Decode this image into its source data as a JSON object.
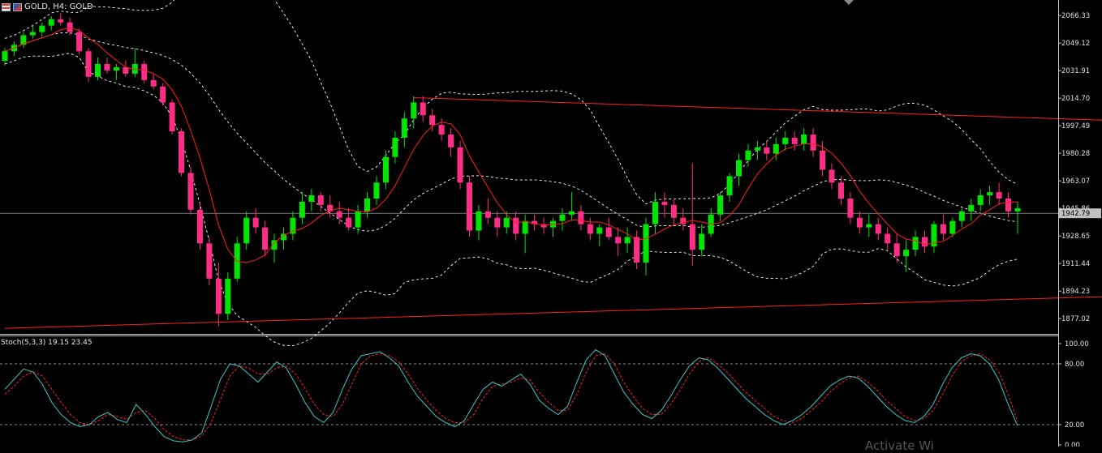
{
  "header": {
    "symbol_line": "GOLD, H4: GOLD"
  },
  "stochastic": {
    "label": "Stoch(5,3,3) 19.15 23.45",
    "main": 19.15,
    "signal": 23.45
  },
  "watermark": {
    "text": "Activate Wi"
  },
  "current_price": "1942.79",
  "colors": {
    "background": "#000000",
    "bull": "#00e600",
    "bear": "#ff2d86",
    "ma": "#ff1e1e",
    "bands": "#ffffff",
    "trendlines": "#ff2020",
    "stoch_main": "#3cc8c8",
    "stoch_signal": "#ff2020"
  },
  "icons": {
    "calendar": "calendar-icon",
    "flag": "flag-icon"
  },
  "chart_data": [
    {
      "type": "candlestick",
      "title": "GOLD, H4: GOLD",
      "y_ticks": [
        "2066.33",
        "2049.12",
        "2031.91",
        "2014.70",
        "1997.49",
        "1980.28",
        "1963.07",
        "1945.86",
        "1928.65",
        "1911.44",
        "1894.23",
        "1877.02"
      ],
      "ylim": [
        1868,
        2076
      ],
      "current_price": 1942.79,
      "indicators": [
        "Bollinger Bands (dashed)",
        "Moving average (red)",
        "Converging trendlines"
      ],
      "trendlines": [
        {
          "from_index": 44,
          "from_price": 2015.0,
          "to_index": 327,
          "to_price": 1961.5
        },
        {
          "from_index": 0,
          "from_price": 1871.0,
          "to_index": 327,
          "to_price": 1925.5
        }
      ],
      "ohlc": [
        [
          2038,
          2046,
          2035,
          2044
        ],
        [
          2044,
          2050,
          2041,
          2048
        ],
        [
          2048,
          2056,
          2046,
          2054
        ],
        [
          2054,
          2060,
          2052,
          2056
        ],
        [
          2056,
          2062,
          2053,
          2060
        ],
        [
          2060,
          2066,
          2057,
          2064
        ],
        [
          2064,
          2068,
          2060,
          2062
        ],
        [
          2062,
          2065,
          2054,
          2056
        ],
        [
          2056,
          2058,
          2042,
          2044
        ],
        [
          2044,
          2046,
          2025,
          2028
        ],
        [
          2028,
          2040,
          2026,
          2036
        ],
        [
          2036,
          2040,
          2030,
          2032
        ],
        [
          2032,
          2036,
          2026,
          2034
        ],
        [
          2034,
          2038,
          2028,
          2030
        ],
        [
          2030,
          2046,
          2028,
          2036
        ],
        [
          2036,
          2038,
          2024,
          2026
        ],
        [
          2026,
          2030,
          2020,
          2022
        ],
        [
          2022,
          2024,
          2010,
          2012
        ],
        [
          2012,
          2014,
          1992,
          1994
        ],
        [
          1994,
          1996,
          1966,
          1968
        ],
        [
          1968,
          1972,
          1942,
          1945
        ],
        [
          1945,
          1950,
          1920,
          1924
        ],
        [
          1924,
          1928,
          1898,
          1902
        ],
        [
          1902,
          1912,
          1872,
          1880
        ],
        [
          1880,
          1906,
          1876,
          1902
        ],
        [
          1902,
          1928,
          1900,
          1924
        ],
        [
          1924,
          1944,
          1920,
          1940
        ],
        [
          1940,
          1946,
          1930,
          1934
        ],
        [
          1934,
          1938,
          1916,
          1920
        ],
        [
          1920,
          1930,
          1912,
          1926
        ],
        [
          1926,
          1934,
          1920,
          1930
        ],
        [
          1930,
          1944,
          1926,
          1940
        ],
        [
          1940,
          1956,
          1936,
          1950
        ],
        [
          1950,
          1958,
          1944,
          1954
        ],
        [
          1954,
          1956,
          1944,
          1948
        ],
        [
          1948,
          1954,
          1940,
          1944
        ],
        [
          1944,
          1950,
          1936,
          1940
        ],
        [
          1940,
          1946,
          1932,
          1934
        ],
        [
          1934,
          1948,
          1930,
          1944
        ],
        [
          1944,
          1956,
          1940,
          1952
        ],
        [
          1952,
          1966,
          1948,
          1962
        ],
        [
          1962,
          1982,
          1958,
          1978
        ],
        [
          1978,
          1994,
          1974,
          1990
        ],
        [
          1990,
          2006,
          1984,
          2002
        ],
        [
          2002,
          2016,
          1996,
          2012
        ],
        [
          2012,
          2016,
          2000,
          2004
        ],
        [
          2004,
          2008,
          1994,
          1998
        ],
        [
          1998,
          2002,
          1988,
          1992
        ],
        [
          1992,
          1996,
          1978,
          1984
        ],
        [
          1984,
          1988,
          1958,
          1962
        ],
        [
          1962,
          1966,
          1928,
          1932
        ],
        [
          1932,
          1948,
          1926,
          1944
        ],
        [
          1944,
          1952,
          1936,
          1940
        ],
        [
          1940,
          1944,
          1928,
          1934
        ],
        [
          1934,
          1944,
          1930,
          1940
        ],
        [
          1940,
          1944,
          1926,
          1930
        ],
        [
          1930,
          1942,
          1918,
          1938
        ],
        [
          1938,
          1942,
          1932,
          1936
        ],
        [
          1936,
          1940,
          1930,
          1934
        ],
        [
          1934,
          1940,
          1928,
          1938
        ],
        [
          1938,
          1946,
          1932,
          1942
        ],
        [
          1942,
          1956,
          1938,
          1944
        ],
        [
          1944,
          1948,
          1932,
          1936
        ],
        [
          1936,
          1940,
          1926,
          1930
        ],
        [
          1930,
          1936,
          1922,
          1934
        ],
        [
          1934,
          1940,
          1926,
          1928
        ],
        [
          1928,
          1934,
          1916,
          1924
        ],
        [
          1924,
          1934,
          1918,
          1928
        ],
        [
          1928,
          1932,
          1908,
          1912
        ],
        [
          1912,
          1940,
          1904,
          1936
        ],
        [
          1936,
          1956,
          1930,
          1950
        ],
        [
          1950,
          1956,
          1940,
          1948
        ],
        [
          1948,
          1952,
          1936,
          1940
        ],
        [
          1940,
          1946,
          1932,
          1936
        ],
        [
          1936,
          1974,
          1910,
          1920
        ],
        [
          1920,
          1936,
          1916,
          1930
        ],
        [
          1930,
          1946,
          1928,
          1942
        ],
        [
          1942,
          1956,
          1938,
          1954
        ],
        [
          1954,
          1968,
          1950,
          1966
        ],
        [
          1966,
          1980,
          1960,
          1976
        ],
        [
          1976,
          1986,
          1972,
          1982
        ],
        [
          1982,
          1988,
          1976,
          1984
        ],
        [
          1984,
          1988,
          1976,
          1980
        ],
        [
          1980,
          1990,
          1976,
          1986
        ],
        [
          1986,
          1994,
          1982,
          1990
        ],
        [
          1990,
          1994,
          1982,
          1986
        ],
        [
          1986,
          1996,
          1982,
          1992
        ],
        [
          1992,
          1996,
          1978,
          1982
        ],
        [
          1982,
          1988,
          1966,
          1970
        ],
        [
          1970,
          1974,
          1958,
          1962
        ],
        [
          1962,
          1966,
          1948,
          1952
        ],
        [
          1952,
          1956,
          1936,
          1940
        ],
        [
          1940,
          1944,
          1930,
          1934
        ],
        [
          1934,
          1942,
          1928,
          1936
        ],
        [
          1936,
          1940,
          1926,
          1930
        ],
        [
          1930,
          1934,
          1920,
          1924
        ],
        [
          1924,
          1930,
          1912,
          1916
        ],
        [
          1916,
          1926,
          1906,
          1920
        ],
        [
          1920,
          1932,
          1916,
          1928
        ],
        [
          1928,
          1932,
          1918,
          1922
        ],
        [
          1922,
          1938,
          1918,
          1936
        ],
        [
          1936,
          1942,
          1926,
          1930
        ],
        [
          1930,
          1940,
          1928,
          1938
        ],
        [
          1938,
          1946,
          1934,
          1944
        ],
        [
          1944,
          1952,
          1938,
          1948
        ],
        [
          1948,
          1958,
          1944,
          1954
        ],
        [
          1954,
          1960,
          1948,
          1956
        ],
        [
          1956,
          1962,
          1948,
          1952
        ],
        [
          1952,
          1956,
          1940,
          1944
        ],
        [
          1944,
          1950,
          1930,
          1946
        ]
      ]
    },
    {
      "type": "line",
      "title": "Stoch(5,3,3) 19.15 23.45",
      "y_ticks": [
        "100.00",
        "80.00",
        "20.00",
        "0.00"
      ],
      "ylim": [
        0,
        100
      ],
      "levels": [
        80,
        20
      ],
      "series": [
        {
          "name": "main",
          "values": [
            55,
            65,
            75,
            72,
            60,
            42,
            30,
            22,
            18,
            20,
            28,
            32,
            25,
            22,
            40,
            30,
            18,
            8,
            4,
            3,
            5,
            12,
            38,
            65,
            80,
            78,
            70,
            62,
            72,
            82,
            76,
            60,
            42,
            28,
            22,
            32,
            55,
            75,
            88,
            90,
            92,
            86,
            78,
            62,
            48,
            38,
            28,
            22,
            18,
            24,
            40,
            55,
            62,
            58,
            64,
            70,
            60,
            44,
            36,
            30,
            38,
            62,
            84,
            94,
            88,
            70,
            52,
            40,
            30,
            26,
            34,
            48,
            64,
            78,
            86,
            84,
            76,
            66,
            56,
            46,
            38,
            30,
            24,
            20,
            24,
            30,
            38,
            48,
            58,
            64,
            68,
            66,
            58,
            48,
            38,
            30,
            24,
            22,
            28,
            40,
            60,
            76,
            86,
            90,
            88,
            80,
            64,
            40,
            19
          ]
        },
        {
          "name": "signal",
          "values": [
            50,
            58,
            68,
            72,
            68,
            55,
            42,
            30,
            22,
            20,
            24,
            30,
            28,
            25,
            32,
            34,
            26,
            15,
            8,
            5,
            5,
            9,
            22,
            45,
            68,
            78,
            76,
            70,
            70,
            76,
            78,
            70,
            56,
            40,
            30,
            28,
            40,
            60,
            80,
            88,
            90,
            88,
            82,
            70,
            56,
            44,
            34,
            26,
            22,
            22,
            30,
            46,
            58,
            60,
            62,
            66,
            64,
            52,
            42,
            34,
            34,
            50,
            72,
            88,
            90,
            80,
            62,
            48,
            36,
            30,
            30,
            40,
            54,
            70,
            82,
            86,
            80,
            72,
            62,
            52,
            44,
            36,
            28,
            24,
            22,
            26,
            34,
            42,
            52,
            60,
            66,
            68,
            62,
            54,
            44,
            36,
            28,
            24,
            26,
            34,
            50,
            68,
            82,
            88,
            90,
            84,
            72,
            50,
            23
          ]
        }
      ]
    }
  ]
}
